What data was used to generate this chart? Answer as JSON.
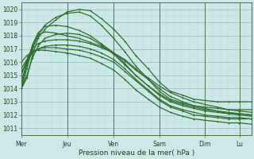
{
  "xlabel": "Pression niveau de la mer( hPa )",
  "ylim": [
    1010.5,
    1020.5
  ],
  "yticks": [
    1011,
    1012,
    1013,
    1014,
    1015,
    1016,
    1017,
    1018,
    1019,
    1020
  ],
  "day_labels": [
    "Mer",
    "Jeu",
    "Ven",
    "Sam",
    "Dim",
    "Lu"
  ],
  "day_positions": [
    0,
    0.333,
    0.667,
    1.0,
    1.333,
    1.583
  ],
  "xlim": [
    0,
    1.667
  ],
  "bg_color": "#cce8e8",
  "grid_major_color": "#99bbbb",
  "grid_minor_color": "#bbdddd",
  "line_color": "#2d6e2d",
  "line_width": 0.9,
  "marker": "+",
  "markersize": 2.0,
  "series": [
    {
      "x": [
        0,
        0.04,
        0.08,
        0.12,
        0.17,
        0.25,
        0.33,
        0.42,
        0.5,
        0.58,
        0.67,
        0.75,
        0.83,
        0.92,
        1.0,
        1.08,
        1.17,
        1.25,
        1.33,
        1.42,
        1.5,
        1.58,
        1.67
      ],
      "y": [
        1014.0,
        1014.8,
        1016.5,
        1017.8,
        1018.5,
        1019.2,
        1019.8,
        1020.0,
        1019.9,
        1019.3,
        1018.5,
        1017.6,
        1016.5,
        1015.5,
        1014.5,
        1013.8,
        1013.5,
        1013.2,
        1013.1,
        1013.0,
        1013.0,
        1013.0,
        1013.0
      ]
    },
    {
      "x": [
        0,
        0.04,
        0.08,
        0.12,
        0.17,
        0.25,
        0.33,
        0.42,
        0.5,
        0.58,
        0.67,
        0.75,
        0.83,
        0.92,
        1.0,
        1.08,
        1.17,
        1.25,
        1.33,
        1.42,
        1.5,
        1.58,
        1.67
      ],
      "y": [
        1014.0,
        1015.5,
        1017.0,
        1018.0,
        1018.8,
        1019.4,
        1019.7,
        1019.8,
        1019.5,
        1018.8,
        1017.8,
        1016.8,
        1015.7,
        1014.7,
        1013.8,
        1013.2,
        1012.9,
        1012.7,
        1012.6,
        1012.5,
        1012.4,
        1012.4,
        1012.4
      ]
    },
    {
      "x": [
        0,
        0.04,
        0.08,
        0.12,
        0.17,
        0.25,
        0.33,
        0.42,
        0.5,
        0.58,
        0.67,
        0.75,
        0.83,
        0.92,
        1.0,
        1.08,
        1.17,
        1.25,
        1.33,
        1.42,
        1.5,
        1.58,
        1.67
      ],
      "y": [
        1014.5,
        1016.0,
        1017.2,
        1018.0,
        1018.3,
        1018.2,
        1018.0,
        1017.8,
        1017.5,
        1017.2,
        1016.7,
        1016.2,
        1015.5,
        1014.8,
        1014.2,
        1013.7,
        1013.3,
        1013.0,
        1012.8,
        1012.6,
        1012.4,
        1012.3,
        1012.2
      ]
    },
    {
      "x": [
        0,
        0.04,
        0.08,
        0.12,
        0.17,
        0.25,
        0.33,
        0.42,
        0.5,
        0.58,
        0.67,
        0.75,
        0.83,
        0.92,
        1.0,
        1.08,
        1.17,
        1.25,
        1.33,
        1.42,
        1.5,
        1.58,
        1.67
      ],
      "y": [
        1015.0,
        1016.2,
        1017.0,
        1017.4,
        1017.6,
        1017.7,
        1017.7,
        1017.6,
        1017.4,
        1017.1,
        1016.7,
        1016.1,
        1015.4,
        1014.7,
        1014.0,
        1013.4,
        1013.0,
        1012.7,
        1012.5,
        1012.3,
        1012.1,
        1012.0,
        1011.9
      ]
    },
    {
      "x": [
        0,
        0.04,
        0.08,
        0.12,
        0.17,
        0.25,
        0.33,
        0.42,
        0.5,
        0.58,
        0.67,
        0.75,
        0.83,
        0.92,
        1.0,
        1.08,
        1.17,
        1.25,
        1.33,
        1.42,
        1.5,
        1.58,
        1.67
      ],
      "y": [
        1015.2,
        1016.0,
        1016.7,
        1017.0,
        1017.2,
        1017.3,
        1017.3,
        1017.2,
        1017.0,
        1016.7,
        1016.2,
        1015.5,
        1014.7,
        1013.9,
        1013.2,
        1012.7,
        1012.4,
        1012.2,
        1012.0,
        1011.9,
        1011.8,
        1011.8,
        1011.7
      ]
    },
    {
      "x": [
        0,
        0.04,
        0.08,
        0.12,
        0.17,
        0.25,
        0.33,
        0.42,
        0.5,
        0.58,
        0.67,
        0.75,
        0.83,
        0.92,
        1.0,
        1.08,
        1.17,
        1.25,
        1.33,
        1.42,
        1.5,
        1.58,
        1.67
      ],
      "y": [
        1015.5,
        1016.2,
        1016.8,
        1017.0,
        1017.1,
        1017.1,
        1017.0,
        1016.9,
        1016.7,
        1016.4,
        1016.0,
        1015.3,
        1014.6,
        1013.8,
        1013.1,
        1012.6,
        1012.3,
        1012.0,
        1011.9,
        1011.8,
        1011.7,
        1011.7,
        1011.7
      ]
    },
    {
      "x": [
        0,
        0.04,
        0.08,
        0.12,
        0.17,
        0.25,
        0.33,
        0.42,
        0.5,
        0.58,
        0.67,
        0.75,
        0.83,
        0.92,
        1.0,
        1.08,
        1.17,
        1.25,
        1.33,
        1.42,
        1.5,
        1.58,
        1.67
      ],
      "y": [
        1016.0,
        1016.5,
        1016.8,
        1016.9,
        1016.9,
        1016.8,
        1016.7,
        1016.5,
        1016.3,
        1015.9,
        1015.4,
        1014.7,
        1013.9,
        1013.2,
        1012.6,
        1012.2,
        1011.9,
        1011.7,
        1011.6,
        1011.5,
        1011.4,
        1011.4,
        1011.3
      ]
    },
    {
      "x": [
        0,
        0.04,
        0.08,
        0.12,
        0.17,
        0.25,
        0.33,
        0.42,
        0.5,
        0.58,
        0.67,
        0.75,
        0.83,
        0.92,
        1.0,
        1.08,
        1.17,
        1.25,
        1.33,
        1.42,
        1.5,
        1.58,
        1.67
      ],
      "y": [
        1014.2,
        1015.8,
        1017.3,
        1018.2,
        1018.7,
        1018.8,
        1018.7,
        1018.4,
        1018.0,
        1017.4,
        1016.7,
        1015.9,
        1015.0,
        1014.2,
        1013.5,
        1013.0,
        1012.7,
        1012.5,
        1012.3,
        1012.2,
        1012.1,
        1012.1,
        1012.0
      ]
    },
    {
      "x": [
        0,
        0.04,
        0.08,
        0.12,
        0.17,
        0.25,
        0.33,
        0.42,
        0.5,
        0.58,
        0.67,
        0.75,
        0.83,
        0.92,
        1.0,
        1.08,
        1.17,
        1.25,
        1.33,
        1.42,
        1.5,
        1.58,
        1.67
      ],
      "y": [
        1014.0,
        1015.0,
        1016.3,
        1017.2,
        1017.8,
        1018.1,
        1018.2,
        1018.1,
        1017.8,
        1017.3,
        1016.6,
        1015.8,
        1015.0,
        1014.2,
        1013.6,
        1013.1,
        1012.8,
        1012.6,
        1012.4,
        1012.3,
        1012.2,
        1012.1,
        1012.0
      ]
    }
  ]
}
